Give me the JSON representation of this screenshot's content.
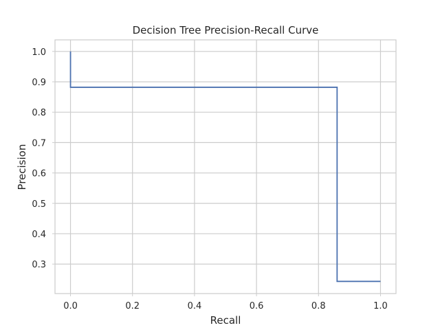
{
  "chart_data": {
    "type": "line",
    "drawstyle": "step-post",
    "title": "Decision Tree Precision-Recall Curve",
    "xlabel": "Recall",
    "ylabel": "Precision",
    "xlim": [
      -0.05,
      1.05
    ],
    "ylim": [
      0.203,
      1.038
    ],
    "xticks": [
      0.0,
      0.2,
      0.4,
      0.6,
      0.8,
      1.0
    ],
    "xtick_labels": [
      "0.0",
      "0.2",
      "0.4",
      "0.6",
      "0.8",
      "1.0"
    ],
    "yticks": [
      0.3,
      0.4,
      0.5,
      0.6,
      0.7,
      0.8,
      0.9,
      1.0
    ],
    "ytick_labels": [
      "0.3",
      "0.4",
      "0.5",
      "0.6",
      "0.7",
      "0.8",
      "0.9",
      "1.0"
    ],
    "grid": true,
    "legend": "none",
    "series": [
      {
        "color": "#4c72b0",
        "x": [
          0.0,
          0.0,
          0.86,
          0.86,
          1.0
        ],
        "y": [
          1.0,
          0.882,
          0.882,
          0.243,
          0.243
        ]
      }
    ]
  }
}
